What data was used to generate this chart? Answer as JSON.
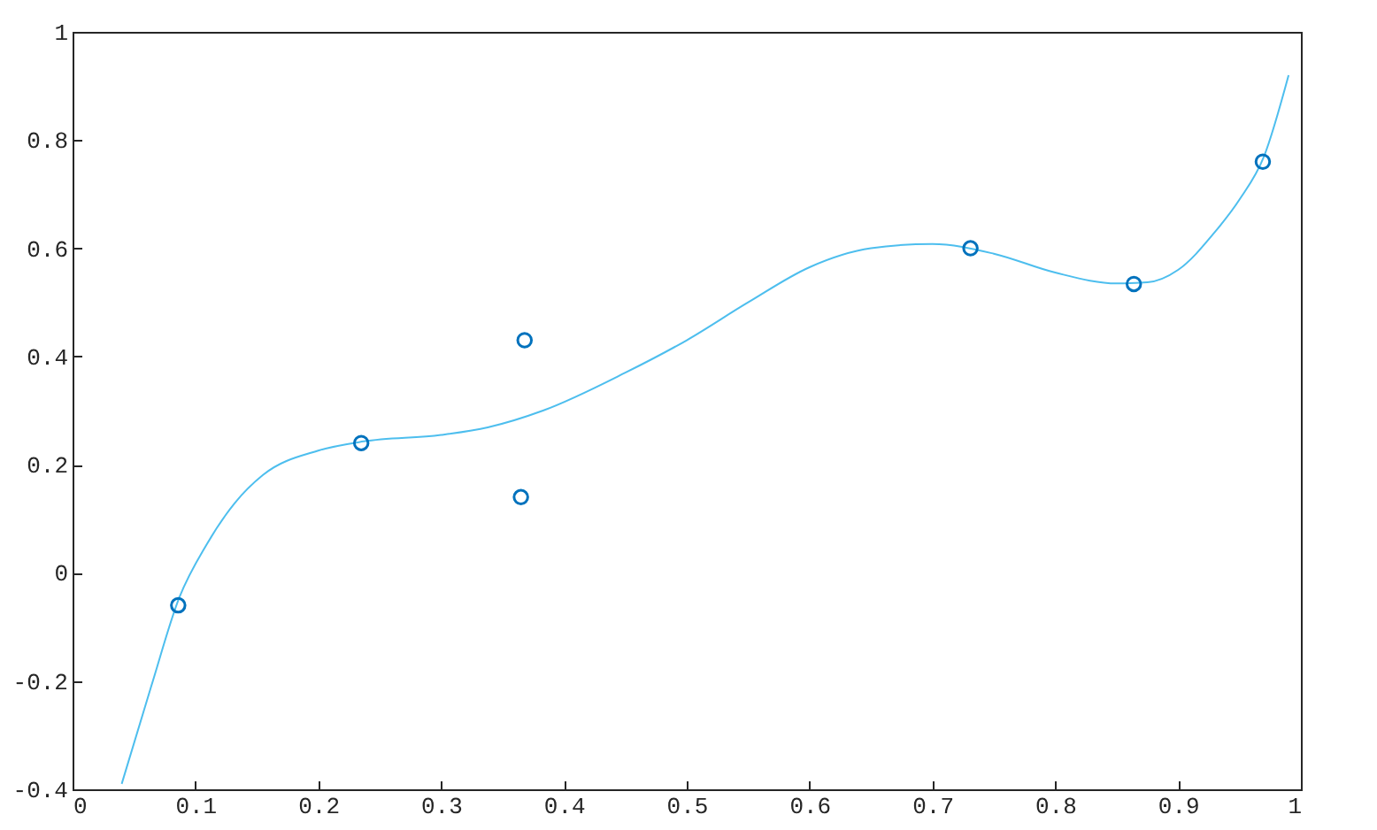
{
  "chart_data": {
    "type": "scatter",
    "xlim": [
      0,
      1
    ],
    "ylim": [
      -0.4,
      1
    ],
    "xticks": [
      0,
      0.1,
      0.2,
      0.3,
      0.4,
      0.5,
      0.6,
      0.7,
      0.8,
      0.9,
      1
    ],
    "yticks": [
      -0.4,
      -0.2,
      0,
      0.2,
      0.4,
      0.6,
      0.8,
      1
    ],
    "grid": false,
    "series": [
      {
        "type": "line",
        "color": "#4dbeee",
        "marker": "none",
        "x": [
          0.04,
          0.064,
          0.087,
          0.109,
          0.132,
          0.155,
          0.2,
          0.237,
          0.3,
          0.338,
          0.383,
          0.45,
          0.5,
          0.55,
          0.6,
          0.65,
          0.7,
          0.75,
          0.8,
          0.85,
          0.875,
          0.9,
          0.93,
          0.95,
          0.97,
          0.99
        ],
        "values": [
          -0.39,
          -0.21,
          -0.045,
          0.052,
          0.129,
          0.181,
          0.226,
          0.243,
          0.255,
          0.269,
          0.3,
          0.37,
          0.43,
          0.5,
          0.565,
          0.6,
          0.608,
          0.59,
          0.555,
          0.535,
          0.537,
          0.56,
          0.63,
          0.69,
          0.77,
          0.92
        ]
      },
      {
        "color": "#0072bd",
        "marker": "circle",
        "x": [
          0.086,
          0.235,
          0.365,
          0.368,
          0.731,
          0.864,
          0.969
        ],
        "values": [
          -0.06,
          0.24,
          0.14,
          0.43,
          0.6,
          0.534,
          0.76
        ]
      }
    ]
  }
}
